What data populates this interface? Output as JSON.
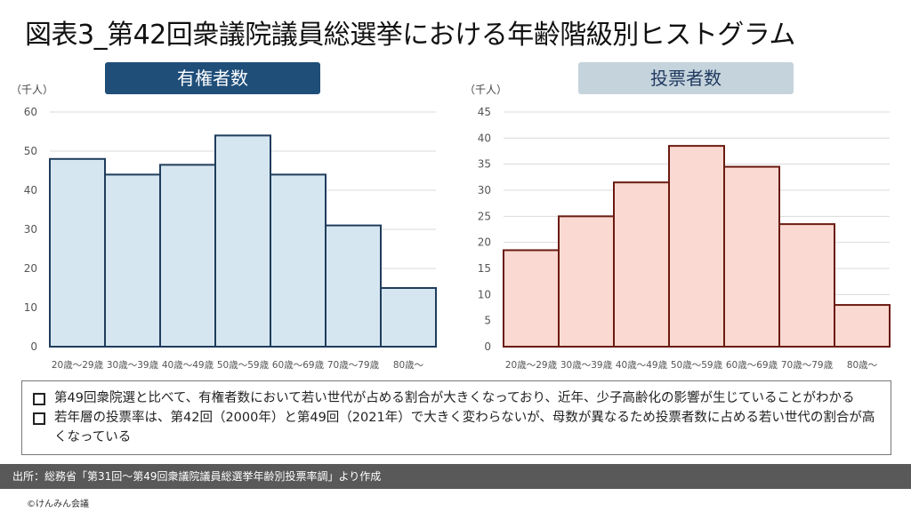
{
  "title": "図表3_第42回衆議院議員総選挙における年齢階級別ヒストグラム",
  "chart_data": [
    {
      "type": "bar",
      "title": "有権者数",
      "ylabel": "（千人）",
      "categories": [
        "20歳～29歳",
        "30歳～39歳",
        "40歳～49歳",
        "50歳～59歳",
        "60歳～69歳",
        "70歳～79歳",
        "80歳～"
      ],
      "values": [
        48,
        44,
        46.5,
        54,
        44,
        31,
        15
      ],
      "ylim": [
        0,
        60
      ],
      "yticks": [
        "0",
        "10",
        "20",
        "30",
        "40",
        "50",
        "60"
      ],
      "fill": "#d6e6f0",
      "stroke": "#1f3d5c",
      "header_bg": "#1f4e79"
    },
    {
      "type": "bar",
      "title": "投票者数",
      "ylabel": "（千人）",
      "categories": [
        "20歳～29歳",
        "30歳～39歳",
        "40歳～49歳",
        "50歳～59歳",
        "60歳～69歳",
        "70歳～79歳",
        "80歳～"
      ],
      "values": [
        18.5,
        25,
        31.5,
        38.5,
        34.5,
        23.5,
        8
      ],
      "ylim": [
        0,
        45
      ],
      "yticks": [
        "0",
        "5",
        "10",
        "15",
        "20",
        "25",
        "30",
        "35",
        "40",
        "45"
      ],
      "fill": "#f9d9d2",
      "stroke": "#6b1a10",
      "header_bg": "#c5d3dc"
    }
  ],
  "notes": [
    "第49回衆院選と比べて、有権者数において若い世代が占める割合が大きくなっており、近年、少子高齢化の影響が生じていることがわかる",
    "若年層の投票率は、第42回（2000年）と第49回（2021年）で大きく変わらないが、母数が異なるため投票者数に占める若い世代の割合が高くなっている"
  ],
  "footer": "出所：総務省「第31回～第49回衆議院議員総選挙年齢別投票率調」より作成",
  "copyright": "©けんみん会議"
}
